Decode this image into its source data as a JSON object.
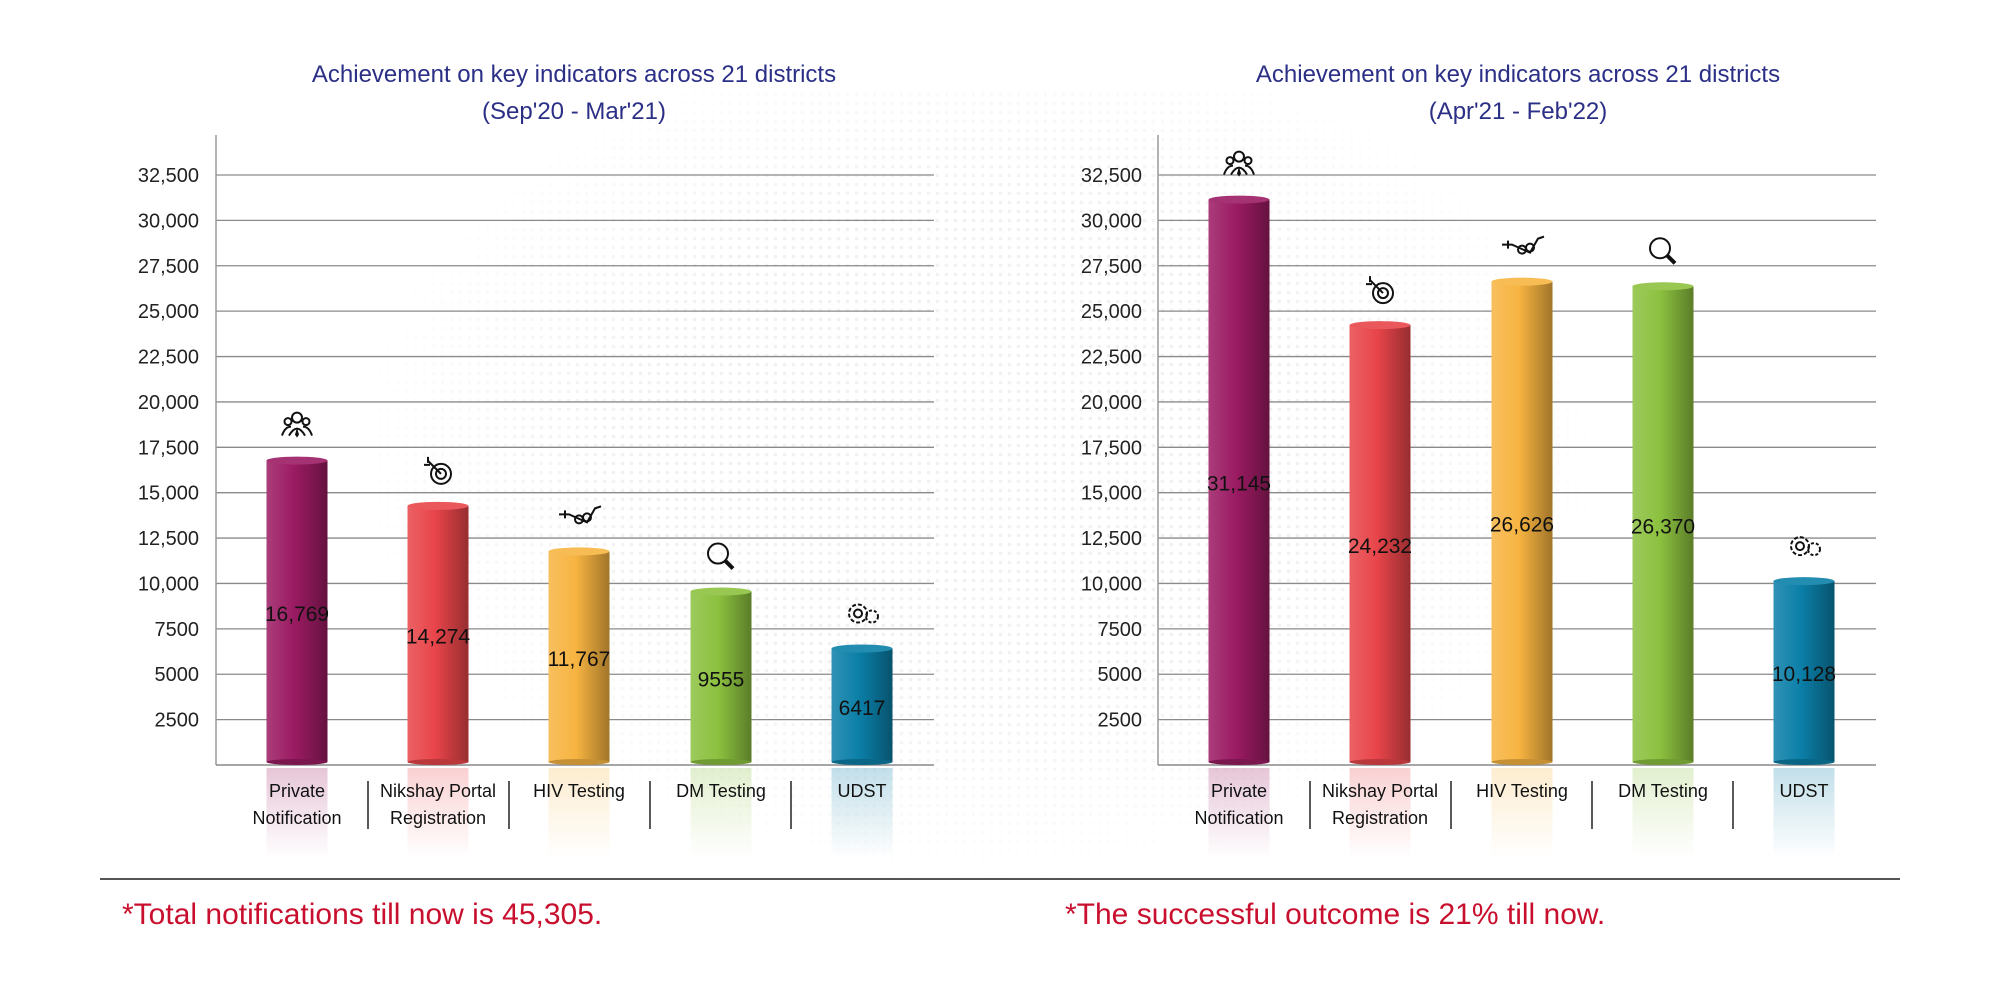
{
  "chart_data": [
    {
      "type": "bar",
      "title": "Achievement on key indicators across 21 districts",
      "subtitle": "(Sep'20 - Mar'21)",
      "categories": [
        "Private Notification",
        "Nikshay Portal Registration",
        "HIV Testing",
        "DM Testing",
        "UDST"
      ],
      "category_lines": [
        [
          "Private",
          "Notification"
        ],
        [
          "Nikshay Portal",
          "Registration"
        ],
        [
          "HIV Testing"
        ],
        [
          "DM Testing"
        ],
        [
          "UDST"
        ]
      ],
      "values": [
        16769,
        14274,
        11767,
        9555,
        6417
      ],
      "value_labels": [
        "16,769",
        "14,274",
        "11,767",
        "9555",
        "6417"
      ],
      "colors": [
        "#9b1b63",
        "#e8454a",
        "#f7b441",
        "#8cc13f",
        "#0b7fa8"
      ],
      "icons": [
        "people-network-icon",
        "target-icon",
        "syringe-icon",
        "magnifier-icon",
        "gears-icon"
      ],
      "yticks": [
        "2500",
        "5000",
        "7500",
        "10,000",
        "12,500",
        "15,000",
        "17,500",
        "20,000",
        "22,500",
        "25,000",
        "27,500",
        "30,000",
        "32,500"
      ],
      "ylim": [
        0,
        32500
      ],
      "grid": true,
      "footnote": "*Total notifications till now is 45,305."
    },
    {
      "type": "bar",
      "title": "Achievement on key indicators across 21 districts",
      "subtitle": "(Apr'21 - Feb'22)",
      "categories": [
        "Private Notification",
        "Nikshay Portal Registration",
        "HIV Testing",
        "DM Testing",
        "UDST"
      ],
      "category_lines": [
        [
          "Private",
          "Notification"
        ],
        [
          "Nikshay Portal",
          "Registration"
        ],
        [
          "HIV Testing"
        ],
        [
          "DM Testing"
        ],
        [
          "UDST"
        ]
      ],
      "values": [
        31145,
        24232,
        26626,
        26370,
        10128
      ],
      "value_labels": [
        "31,145",
        "24,232",
        "26,626",
        "26,370",
        "10,128"
      ],
      "colors": [
        "#9b1b63",
        "#e8454a",
        "#f7b441",
        "#8cc13f",
        "#0b7fa8"
      ],
      "icons": [
        "people-network-icon",
        "target-icon",
        "syringe-icon",
        "magnifier-icon",
        "gears-icon"
      ],
      "yticks": [
        "2500",
        "5000",
        "7500",
        "10,000",
        "12,500",
        "15,000",
        "17,500",
        "20,000",
        "22,500",
        "25,000",
        "27,500",
        "30,000",
        "32,500"
      ],
      "ylim": [
        0,
        32500
      ],
      "grid": true,
      "footnote": "*The successful outcome is 21% till now."
    }
  ]
}
